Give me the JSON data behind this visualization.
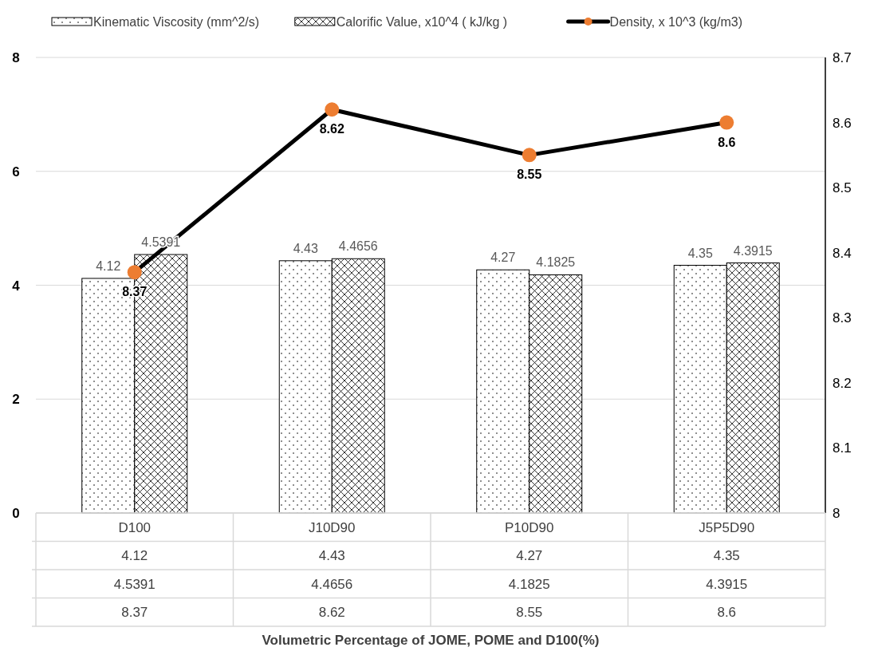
{
  "chart_data": {
    "type": "bar",
    "categories": [
      "D100",
      "J10D90",
      "P10D90",
      "J5P5D90"
    ],
    "series": [
      {
        "name": "Kinematic Viscosity (mm^2/s)",
        "color": "#000000",
        "values": [
          4.12,
          4.43,
          4.27,
          4.35
        ],
        "value_labels": [
          "4.12",
          "4.43",
          "4.27",
          "4.35"
        ]
      },
      {
        "name": "Calorific Value, x10^4 (  kJ/kg )",
        "color": "#000000",
        "values": [
          4.5391,
          4.4656,
          4.1825,
          4.3915
        ],
        "value_labels": [
          "4.5391",
          "4.4656",
          "4.1825",
          "4.3915"
        ]
      },
      {
        "name": "Density, x 10^3 (kg/m3)",
        "type": "line",
        "axis": "y2",
        "color": "#000000",
        "marker": "circle",
        "values": [
          8.37,
          8.62,
          8.55,
          8.6
        ],
        "value_labels": [
          "8.37",
          "8.62",
          "8.55",
          "8.6"
        ]
      }
    ],
    "ylim": [
      0,
      8
    ],
    "yticks": [
      0,
      2,
      4,
      6,
      8
    ],
    "y2lim": [
      8,
      8.7
    ],
    "y2ticks": [
      8,
      8.1,
      8.2,
      8.3,
      8.4,
      8.5,
      8.6,
      8.7
    ],
    "grid": "y",
    "legend": "top",
    "annotations": [
      "4.12",
      "4.43",
      "4.27",
      "4.35",
      "4.5391",
      "4.4656",
      "4.1825",
      "4.3915",
      "8.37",
      "8.62",
      "8.55",
      "8.6",
      "Volumetric Percentage of JOME, POME and D100(%)"
    ]
  }
}
